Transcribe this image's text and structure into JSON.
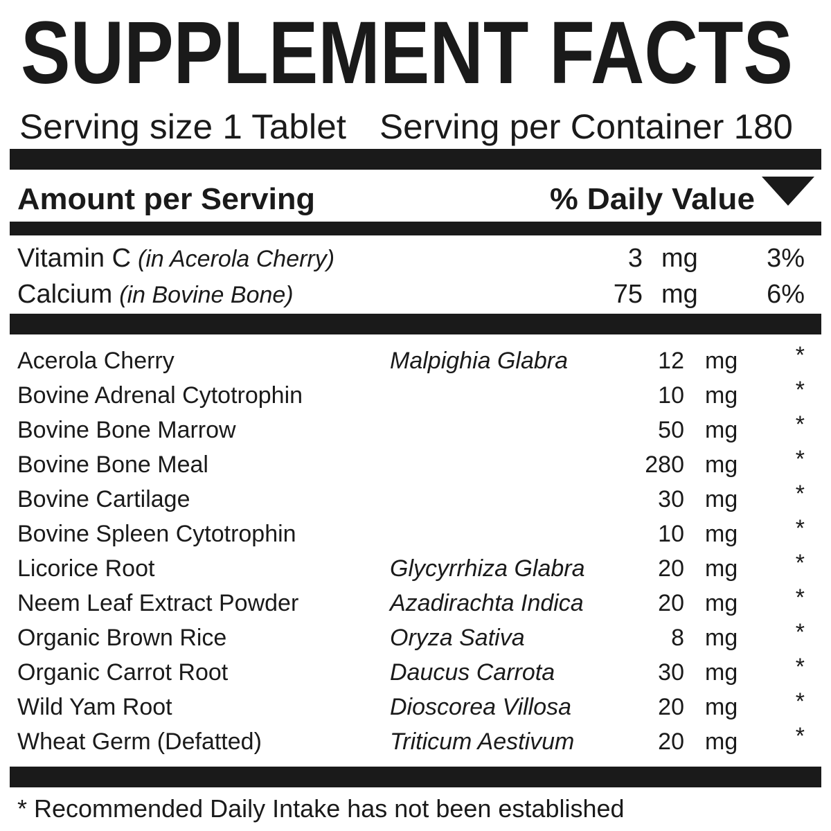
{
  "title": "SUPPLEMENT FACTS",
  "serving_size": "Serving size 1 Tablet",
  "servings_per_container": "Serving per Container 180",
  "header": {
    "amount": "Amount per Serving",
    "daily_value": "% Daily Value"
  },
  "vitamins": [
    {
      "name": "Vitamin C",
      "source": "(in Acerola Cherry)",
      "amount": "3",
      "unit": "mg",
      "dv": "3%"
    },
    {
      "name": "Calcium",
      "source": "(in Bovine Bone)",
      "amount": "75",
      "unit": "mg",
      "dv": "6%"
    }
  ],
  "ingredients": [
    {
      "name": "Acerola Cherry",
      "latin": "Malpighia Glabra",
      "amount": "12",
      "unit": "mg",
      "dv": "*"
    },
    {
      "name": "Bovine Adrenal Cytotrophin",
      "amount": "10",
      "unit": "mg",
      "dv": "*"
    },
    {
      "name": "Bovine Bone Marrow",
      "amount": "50",
      "unit": "mg",
      "dv": "*"
    },
    {
      "name": "Bovine Bone Meal",
      "amount": "280",
      "unit": "mg",
      "dv": "*"
    },
    {
      "name": "Bovine Cartilage",
      "amount": "30",
      "unit": "mg",
      "dv": "*"
    },
    {
      "name": "Bovine Spleen Cytotrophin",
      "amount": "10",
      "unit": "mg",
      "dv": "*"
    },
    {
      "name": "Licorice Root",
      "latin": "Glycyrrhiza Glabra",
      "amount": "20",
      "unit": "mg",
      "dv": "*"
    },
    {
      "name": "Neem Leaf Extract Powder",
      "latin": "Azadirachta Indica",
      "amount": "20",
      "unit": "mg",
      "dv": "*"
    },
    {
      "name": "Organic Brown Rice",
      "latin": "Oryza Sativa",
      "amount": "8",
      "unit": "mg",
      "dv": "*"
    },
    {
      "name": "Organic Carrot Root",
      "latin": "Daucus Carrota",
      "amount": "30",
      "unit": "mg",
      "dv": "*"
    },
    {
      "name": "Wild Yam Root",
      "latin": "Dioscorea Villosa",
      "amount": "20",
      "unit": "mg",
      "dv": "*"
    },
    {
      "name": "Wheat Germ",
      "note": "(Defatted)",
      "latin": "Triticum Aestivum",
      "amount": "20",
      "unit": "mg",
      "dv": "*"
    }
  ],
  "footnote": "* Recommended Daily Intake has not been established"
}
